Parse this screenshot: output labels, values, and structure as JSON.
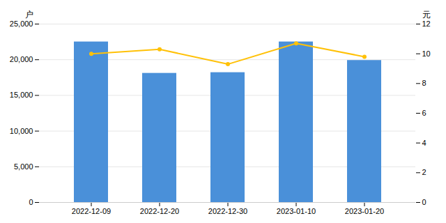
{
  "chart_data": {
    "type": "bar",
    "categories": [
      "2022-12-09",
      "2022-12-20",
      "2022-12-30",
      "2023-01-10",
      "2023-01-20"
    ],
    "series": [
      {
        "type": "bar",
        "color": "#4A90D9",
        "values": [
          22500,
          18100,
          18200,
          22500,
          19900
        ]
      },
      {
        "type": "line",
        "axis": "y2",
        "color": "#FFC107",
        "marker": "circle",
        "values": [
          10.0,
          10.3,
          9.3,
          10.7,
          9.8
        ]
      }
    ],
    "ylabel": "户",
    "y2label": "元",
    "ylim": [
      0,
      25000
    ],
    "yticks": [
      0,
      {
        "value": 5000,
        "label": "5,000"
      },
      {
        "value": 10000,
        "label": "10,000"
      },
      {
        "value": 15000,
        "label": "15,000"
      },
      {
        "value": 20000,
        "label": "20,000"
      },
      {
        "value": 25000,
        "label": "25,000"
      }
    ],
    "y2lim": [
      0,
      12
    ],
    "y2ticks": [
      0,
      2,
      4,
      6,
      8,
      10,
      12
    ],
    "grid": true
  }
}
